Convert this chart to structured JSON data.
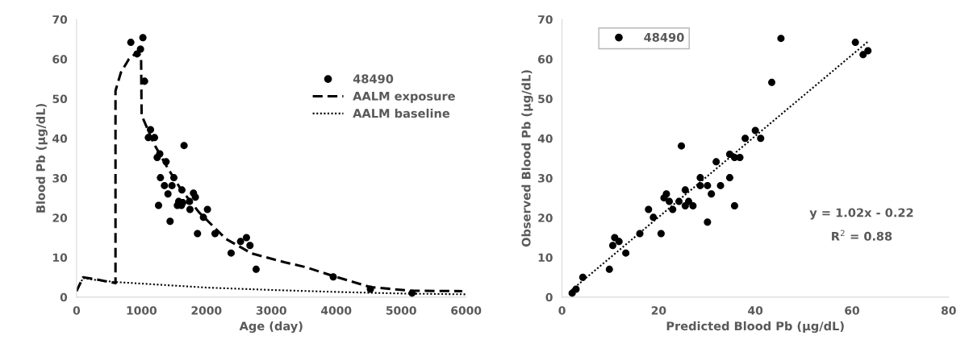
{
  "chart_data": [
    {
      "type": "scatter",
      "xlabel": "Age (day)",
      "ylabel": "Blood Pb (µg/dL)",
      "xlim": [
        0,
        6000
      ],
      "xticks": [
        0,
        1000,
        2000,
        3000,
        4000,
        5000,
        6000
      ],
      "ylim": [
        0,
        70
      ],
      "yticks": [
        0,
        10,
        20,
        30,
        40,
        50,
        60,
        70
      ],
      "grid": false,
      "legend": "right",
      "series": [
        {
          "name": "48490",
          "marker": "circle",
          "color": "#000000",
          "x": [
            836,
            1022,
            985,
            932,
            1048,
            1139,
            1106,
            1201,
            1656,
            1282,
            1242,
            1379,
            1292,
            1499,
            1354,
            1470,
            1623,
            1408,
            1801,
            1830,
            1573,
            1636,
            1739,
            1553,
            1615,
            1263,
            1747,
            2016,
            1954,
            1441,
            1863,
            2133,
            2526,
            2617,
            2671,
            2381,
            2766,
            3954,
            4526,
            5168
          ],
          "values": [
            64.2,
            65.4,
            62.5,
            61.3,
            54.4,
            42.2,
            40.2,
            40.2,
            38.2,
            36.1,
            35.2,
            34.1,
            30.1,
            30.1,
            28.1,
            28.1,
            27.0,
            26.0,
            26.2,
            25.2,
            24.1,
            23.8,
            24.1,
            23.1,
            23.1,
            23.1,
            22.1,
            22.1,
            20.1,
            19.1,
            16.0,
            16.0,
            14.0,
            15.0,
            13.0,
            11.1,
            7.0,
            5.1,
            2.0,
            1.0
          ]
        },
        {
          "name": "AALM exposure",
          "type": "line",
          "line_style": "dashed",
          "marker": "none",
          "color": "#000000",
          "x": [
            0,
            100,
            300,
            600,
            600,
            683,
            807,
            932,
            994,
            1002,
            1056,
            1180,
            1387,
            1594,
            1884,
            2298,
            2700,
            3200,
            3540,
            3954,
            4526,
            5168,
            5942
          ],
          "values": [
            1.5,
            5.0,
            4.5,
            3.5,
            52,
            56.6,
            60,
            61.7,
            60.7,
            45.8,
            43.8,
            39,
            33,
            27.5,
            21.4,
            14.7,
            11,
            8.8,
            7.5,
            5.3,
            2.5,
            1.6,
            1.5
          ]
        },
        {
          "name": "AALM baseline",
          "type": "line",
          "line_style": "dotted",
          "marker": "none",
          "color": "#000000",
          "x": [
            0,
            100,
            300,
            600,
            1000,
            2000,
            3000,
            4000,
            5000,
            6000
          ],
          "values": [
            1.5,
            4.8,
            4.3,
            3.8,
            3.4,
            2.4,
            1.8,
            1.3,
            0.9,
            0.7
          ]
        }
      ]
    },
    {
      "type": "scatter",
      "xlabel": "Predicted Blood Pb (µg/dL)",
      "ylabel": "Observed Blood Pb (µg/dL)",
      "xlim": [
        0,
        80
      ],
      "xticks": [
        0,
        20,
        40,
        60,
        80
      ],
      "ylim": [
        0,
        70
      ],
      "yticks": [
        0,
        10,
        20,
        30,
        40,
        50,
        60,
        70
      ],
      "grid": false,
      "legend": "top left",
      "annotations": [
        "y = 1.02x - 0.22",
        "R$^{2}$ = 0.88"
      ],
      "series": [
        {
          "name": "48490",
          "marker": "circle",
          "color": "#000000",
          "x": [
            2.1,
            2.9,
            4.3,
            9.8,
            10.5,
            10.9,
            11.8,
            13.2,
            16.1,
            17.9,
            18.9,
            20.5,
            21.1,
            21.6,
            22.2,
            22.9,
            24.2,
            24.7,
            25.5,
            25.5,
            26.2,
            27.1,
            28.6,
            28.6,
            30.1,
            30.1,
            30.9,
            31.9,
            32.8,
            34.7,
            34.7,
            35.7,
            36.8,
            35.7,
            37.9,
            40.0,
            41.1,
            43.4,
            45.3,
            60.7,
            62.3,
            63.3
          ],
          "values": [
            1.0,
            2.0,
            5.0,
            7.0,
            13.0,
            15.0,
            14.0,
            11.1,
            16.0,
            22.1,
            20.1,
            16.0,
            25.0,
            26.0,
            24.1,
            22.1,
            24.1,
            38.1,
            27.0,
            23.0,
            24.1,
            23.0,
            28.1,
            30.1,
            28.1,
            18.9,
            26.0,
            34.1,
            28.1,
            36.0,
            30.1,
            35.2,
            35.2,
            23.0,
            40.0,
            42.0,
            40.0,
            54.1,
            65.2,
            64.2,
            61.1,
            62.1
          ]
        },
        {
          "type": "line",
          "line_style": "dotted",
          "marker": "none",
          "color": "#000000",
          "x": [
            2.0,
            63.3
          ],
          "values": [
            1.8,
            64.4
          ]
        }
      ]
    }
  ]
}
